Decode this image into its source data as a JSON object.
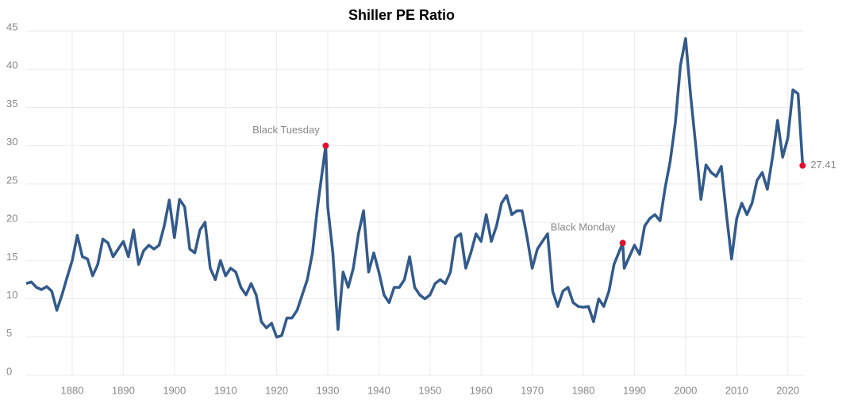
{
  "chart_data": {
    "type": "line",
    "title": "Shiller PE Ratio",
    "x": [
      1871,
      1872,
      1873,
      1874,
      1875,
      1876,
      1877,
      1878,
      1879,
      1880,
      1881,
      1882,
      1883,
      1884,
      1885,
      1886,
      1887,
      1888,
      1889,
      1890,
      1891,
      1892,
      1893,
      1894,
      1895,
      1896,
      1897,
      1898,
      1899,
      1900,
      1901,
      1902,
      1903,
      1904,
      1905,
      1906,
      1907,
      1908,
      1909,
      1910,
      1911,
      1912,
      1913,
      1914,
      1915,
      1916,
      1917,
      1918,
      1919,
      1920,
      1921,
      1922,
      1923,
      1924,
      1925,
      1926,
      1927,
      1928,
      1929.6,
      1930,
      1931,
      1932,
      1933,
      1934,
      1935,
      1936,
      1937,
      1938,
      1939,
      1940,
      1941,
      1942,
      1943,
      1944,
      1945,
      1946,
      1947,
      1948,
      1949,
      1950,
      1951,
      1952,
      1953,
      1954,
      1955,
      1956,
      1957,
      1958,
      1959,
      1960,
      1961,
      1962,
      1963,
      1964,
      1965,
      1966,
      1967,
      1968,
      1969,
      1970,
      1971,
      1972,
      1973,
      1974,
      1975,
      1976,
      1977,
      1978,
      1979,
      1980,
      1981,
      1982,
      1983,
      1984,
      1985,
      1986,
      1987.7,
      1988,
      1989,
      1990,
      1991,
      1992,
      1993,
      1994,
      1995,
      1996,
      1997,
      1998,
      1999,
      2000,
      2001,
      2002,
      2003,
      2004,
      2005,
      2006,
      2007,
      2008,
      2009,
      2010,
      2011,
      2012,
      2013,
      2014,
      2015,
      2016,
      2017,
      2018,
      2019,
      2020,
      2021,
      2022,
      2022.9
    ],
    "series": [
      {
        "name": "Shiller PE Ratio",
        "color": "#325a8c",
        "values": [
          12.0,
          12.2,
          11.5,
          11.2,
          11.6,
          11.0,
          8.5,
          10.5,
          12.8,
          15.0,
          18.3,
          15.5,
          15.2,
          13.0,
          14.5,
          17.8,
          17.3,
          15.5,
          16.5,
          17.5,
          15.5,
          19.0,
          14.5,
          16.3,
          17.0,
          16.5,
          17.0,
          19.5,
          22.9,
          18.0,
          23.0,
          22.0,
          16.5,
          16.0,
          19.0,
          20.0,
          14.0,
          12.5,
          15.0,
          13.0,
          14.0,
          13.5,
          11.5,
          10.5,
          12.0,
          10.5,
          7.0,
          6.2,
          6.8,
          5.0,
          5.2,
          7.5,
          7.5,
          8.5,
          10.5,
          12.5,
          16.0,
          22.0,
          30.0,
          22.0,
          16.0,
          6.0,
          13.5,
          11.5,
          14.0,
          18.5,
          21.5,
          13.5,
          16.0,
          13.5,
          10.5,
          9.5,
          11.5,
          11.5,
          12.5,
          15.5,
          11.5,
          10.5,
          10.0,
          10.5,
          12.0,
          12.5,
          12.0,
          13.5,
          18.0,
          18.5,
          14.0,
          16.0,
          18.5,
          17.5,
          21.0,
          17.5,
          19.5,
          22.5,
          23.5,
          21.0,
          21.5,
          21.5,
          18.0,
          14.0,
          16.5,
          17.5,
          18.5,
          11.0,
          9.0,
          11.0,
          11.5,
          9.5,
          9.0,
          8.9,
          9.0,
          7.0,
          10.0,
          9.0,
          11.0,
          14.5,
          17.3,
          14.0,
          15.5,
          17.0,
          15.8,
          19.5,
          20.5,
          21.0,
          20.2,
          24.5,
          28.0,
          33.0,
          40.5,
          44.0,
          36.5,
          30.0,
          23.0,
          27.5,
          26.5,
          26.0,
          27.3,
          21.0,
          15.2,
          20.5,
          22.5,
          21.0,
          22.5,
          25.5,
          26.5,
          24.3,
          28.5,
          33.3,
          28.5,
          31.0,
          37.3,
          36.8,
          27.41
        ]
      }
    ],
    "annotations": [
      {
        "text": "Black Tuesday",
        "x": 1929.6,
        "y": 30.0
      },
      {
        "text": "Black Monday",
        "x": 1987.7,
        "y": 17.3
      },
      {
        "text": "27.41",
        "x": 2022.9,
        "y": 27.41
      }
    ],
    "annotation_color": "#e0102f",
    "xlim": [
      1871,
      2023
    ],
    "ylim": [
      0,
      45
    ],
    "xticks": [
      1880,
      1890,
      1900,
      1910,
      1920,
      1930,
      1940,
      1950,
      1960,
      1970,
      1980,
      1990,
      2000,
      2010,
      2020
    ],
    "yticks": [
      0,
      5,
      10,
      15,
      20,
      25,
      30,
      35,
      40,
      45
    ],
    "grid": true
  }
}
